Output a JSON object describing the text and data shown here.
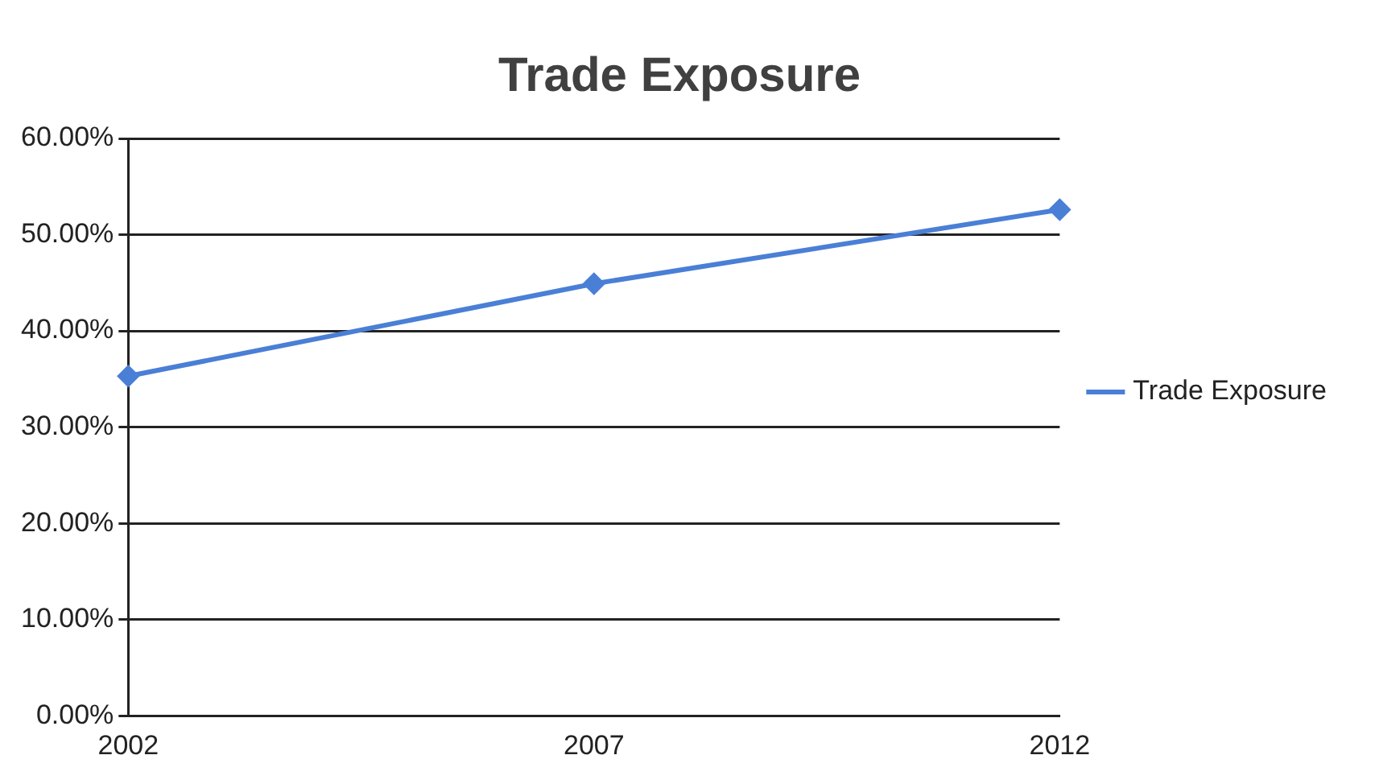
{
  "chart_data": {
    "type": "line",
    "title": "Trade Exposure",
    "categories": [
      "2002",
      "2007",
      "2012"
    ],
    "series": [
      {
        "name": "Trade Exposure",
        "color": "#4a7fd6",
        "values": [
          35.3,
          44.9,
          52.6
        ]
      }
    ],
    "ylim": [
      0,
      60
    ],
    "yticks": [
      {
        "value": 0,
        "label": "0.00%"
      },
      {
        "value": 10,
        "label": "10.00%"
      },
      {
        "value": 20,
        "label": "20.00%"
      },
      {
        "value": 30,
        "label": "30.00%"
      },
      {
        "value": 40,
        "label": "40.00%"
      },
      {
        "value": 50,
        "label": "50.00%"
      },
      {
        "value": 60,
        "label": "60.00%"
      }
    ],
    "grid": "y",
    "legend": "right",
    "marker": "diamond",
    "line_style": "solid"
  }
}
